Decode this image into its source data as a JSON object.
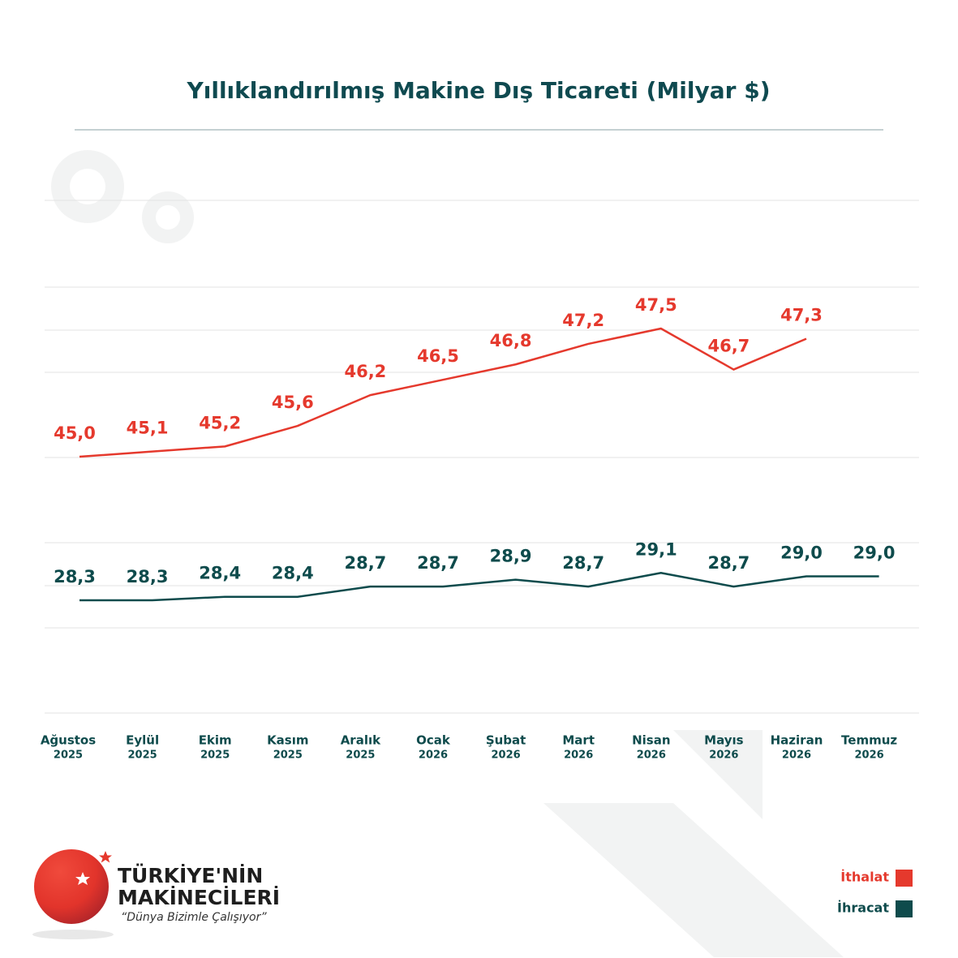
{
  "chart_data": {
    "type": "line",
    "title": "Yıllıklandırılmış Makine Dış Ticareti (Milyar $)",
    "categories": [
      [
        "Ağustos",
        "2025"
      ],
      [
        "Eylül",
        "2025"
      ],
      [
        "Ekim",
        "2025"
      ],
      [
        "Kasım",
        "2025"
      ],
      [
        "Aralık",
        "2025"
      ],
      [
        "Ocak",
        "2026"
      ],
      [
        "Şubat",
        "2026"
      ],
      [
        "Mart",
        "2026"
      ],
      [
        "Nisan",
        "2026"
      ],
      [
        "Mayıs",
        "2026"
      ],
      [
        "Haziran",
        "2026"
      ],
      [
        "Temmuz",
        "2026"
      ]
    ],
    "series": [
      {
        "name": "İthalat",
        "color": "#e5392d",
        "values": [
          45.0,
          45.1,
          45.2,
          45.6,
          46.2,
          46.5,
          46.8,
          47.2,
          47.5,
          46.7,
          47.3,
          null
        ],
        "value_labels": [
          "45,0",
          "45,1",
          "45,2",
          "45,6",
          "46,2",
          "46,5",
          "46,8",
          "47,2",
          "47,5",
          "46,7",
          "47,3",
          null
        ]
      },
      {
        "name": "İhracat",
        "color": "#0e4b4c",
        "axis": "y2",
        "values": [
          28.3,
          28.3,
          28.4,
          28.4,
          28.7,
          28.7,
          28.9,
          28.7,
          29.1,
          28.7,
          29.0,
          29.0
        ],
        "value_labels": [
          "28,3",
          "28,3",
          "28,4",
          "28,4",
          "28,7",
          "28,7",
          "28,9",
          "28,7",
          "29,1",
          "28,7",
          "29,0",
          "29,0"
        ]
      }
    ],
    "ylim": [
      40,
      50
    ],
    "y2lim": [
      25,
      40
    ],
    "legend": "bottom-right"
  },
  "brand": {
    "name_line1": "TÜRKİYE'NİN",
    "name_line2": "MAKİNECİLERİ",
    "tagline": "“Dünya Bizimle Çalışıyor”"
  }
}
